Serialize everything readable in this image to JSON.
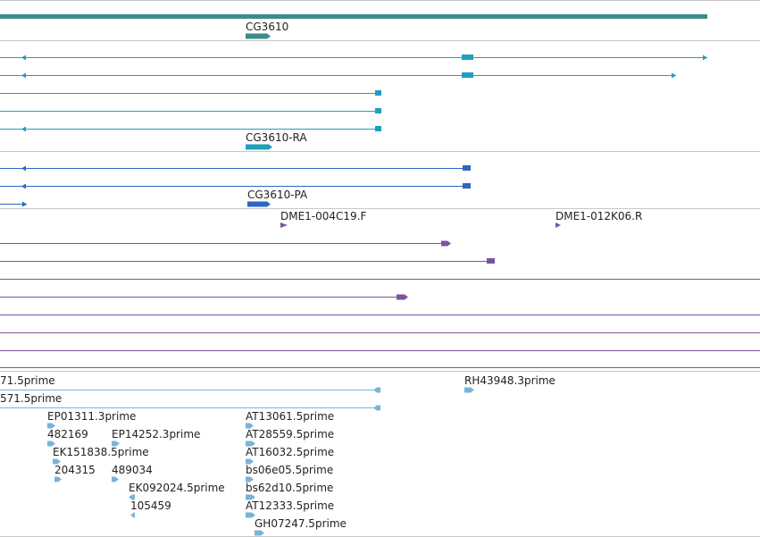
{
  "viewer": {
    "colors": {
      "gene": "#3d8b8b",
      "transcript": "#1e9fbd",
      "protein": "#2e66c0",
      "clone": "#7a559e",
      "est": "#7ab3d8",
      "separator": "#c8c8c8"
    }
  },
  "tracks": {
    "gene": {
      "label": "CG3610"
    },
    "transcript": {
      "label": "CG3610-RA"
    },
    "protein": {
      "label": "CG3610-PA"
    },
    "clone": {
      "labels": [
        "DME1-004C19.F",
        "DME1-012K06.R"
      ]
    },
    "est": {
      "labels": [
        "71.5prime",
        "571.5prime",
        "RH43948.3prime",
        "EP01311.3prime",
        "AT13061.5prime",
        "482169",
        "EP14252.3prime",
        "AT28559.5prime",
        "EK151838.5prime",
        "AT16032.5prime",
        "204315",
        "489034",
        "bs06e05.5prime",
        "EK092024.5prime",
        "bs62d10.5prime",
        "105459",
        "AT12333.5prime",
        "GH07247.5prime"
      ]
    }
  }
}
